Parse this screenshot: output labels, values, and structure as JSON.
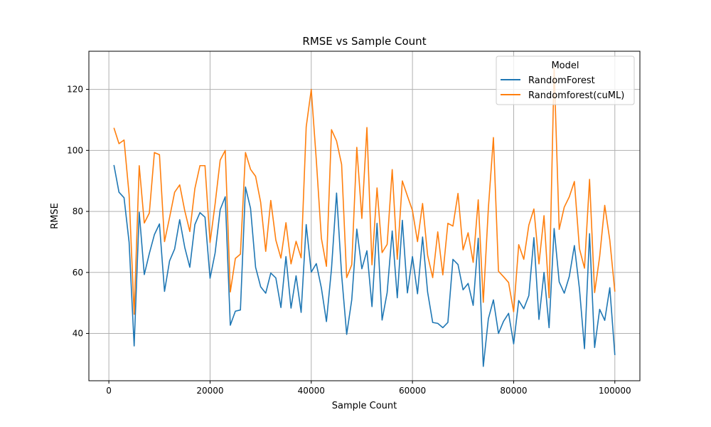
{
  "chart_data": {
    "type": "line",
    "title": "RMSE vs Sample Count",
    "xlabel": "Sample Count",
    "ylabel": "RMSE",
    "xlim": [
      -3950,
      104950
    ],
    "ylim": [
      24.5,
      132.5
    ],
    "xticks": [
      0,
      20000,
      40000,
      60000,
      80000,
      100000
    ],
    "yticks": [
      40,
      60,
      80,
      100,
      120
    ],
    "grid": true,
    "legend": {
      "title": "Model",
      "placement": "top-right"
    },
    "x": [
      1000,
      2000,
      3000,
      4000,
      5000,
      6000,
      7000,
      8000,
      9000,
      10000,
      11000,
      12000,
      13000,
      14000,
      15000,
      16000,
      17000,
      18000,
      19000,
      20000,
      21000,
      22000,
      23000,
      24000,
      25000,
      26000,
      27000,
      28000,
      29000,
      30000,
      31000,
      32000,
      33000,
      34000,
      35000,
      36000,
      37000,
      38000,
      39000,
      40000,
      41000,
      42000,
      43000,
      44000,
      45000,
      46000,
      47000,
      48000,
      49000,
      50000,
      51000,
      52000,
      53000,
      54000,
      55000,
      56000,
      57000,
      58000,
      59000,
      60000,
      61000,
      62000,
      63000,
      64000,
      65000,
      66000,
      67000,
      68000,
      69000,
      70000,
      71000,
      72000,
      73000,
      74000,
      75000,
      76000,
      77000,
      78000,
      79000,
      80000,
      81000,
      82000,
      83000,
      84000,
      85000,
      86000,
      87000,
      88000,
      89000,
      90000,
      91000,
      92000,
      93000,
      94000,
      95000,
      96000,
      97000,
      98000,
      99000,
      100000
    ],
    "series": [
      {
        "name": "RandomForest",
        "color": "#1f77b4",
        "values": [
          95.2,
          86.3,
          84.5,
          69.9,
          35.9,
          79.7,
          59.3,
          66.2,
          72.4,
          75.9,
          53.8,
          63.8,
          67.7,
          77.3,
          68.2,
          61.7,
          75.7,
          79.6,
          78.1,
          58.1,
          66.4,
          80.6,
          84.8,
          42.7,
          47.3,
          47.7,
          88.0,
          81.0,
          61.7,
          55.3,
          53.2,
          59.8,
          58.2,
          48.5,
          65.2,
          48.3,
          58.9,
          46.9,
          75.7,
          60.1,
          62.9,
          54.9,
          43.9,
          61.2,
          86.0,
          59.2,
          39.7,
          51.0,
          74.2,
          61.2,
          67.1,
          48.8,
          76.1,
          44.4,
          53.4,
          73.6,
          51.7,
          77.1,
          53.3,
          65.2,
          53.0,
          71.6,
          53.5,
          43.6,
          43.3,
          41.9,
          43.6,
          64.3,
          62.6,
          54.3,
          56.4,
          49.2,
          71.2,
          29.2,
          44.8,
          51.0,
          40.0,
          44.0,
          46.6,
          36.6,
          50.8,
          48.1,
          52.4,
          71.4,
          44.6,
          60.0,
          41.9,
          74.4,
          56.9,
          53.2,
          58.7,
          68.8,
          54.7,
          35.0,
          72.7,
          35.4,
          47.9,
          44.3,
          55.0,
          32.9
        ]
      },
      {
        "name": "Randomforest(cuML)",
        "color": "#ff7f0e",
        "values": [
          107.4,
          102.2,
          103.4,
          85.5,
          46.3,
          95.0,
          76.2,
          79.5,
          99.3,
          98.6,
          70.1,
          78.0,
          86.3,
          88.7,
          80.2,
          73.4,
          87.5,
          95.0,
          95.0,
          69.8,
          82.5,
          96.8,
          100.0,
          53.6,
          64.6,
          66.0,
          99.3,
          93.8,
          91.5,
          83.0,
          66.9,
          83.6,
          70.6,
          64.7,
          76.3,
          62.8,
          70.2,
          64.8,
          107.7,
          120.0,
          96.8,
          71.2,
          62.0,
          106.8,
          103.1,
          95.4,
          58.3,
          62.5,
          101.0,
          77.7,
          107.5,
          62.5,
          87.7,
          66.5,
          69.2,
          93.7,
          64.3,
          90.0,
          85.1,
          80.3,
          70.1,
          82.6,
          65.6,
          58.3,
          73.3,
          59.2,
          76.1,
          75.2,
          85.9,
          67.4,
          73.0,
          63.3,
          83.8,
          50.2,
          81.0,
          104.2,
          60.4,
          58.6,
          56.7,
          47.1,
          69.1,
          64.3,
          75.5,
          80.8,
          62.8,
          78.6,
          51.7,
          127.0,
          74.1,
          81.4,
          84.8,
          89.8,
          67.8,
          61.4,
          90.5,
          53.4,
          65.2,
          82.0,
          70.6,
          53.7
        ]
      }
    ]
  }
}
